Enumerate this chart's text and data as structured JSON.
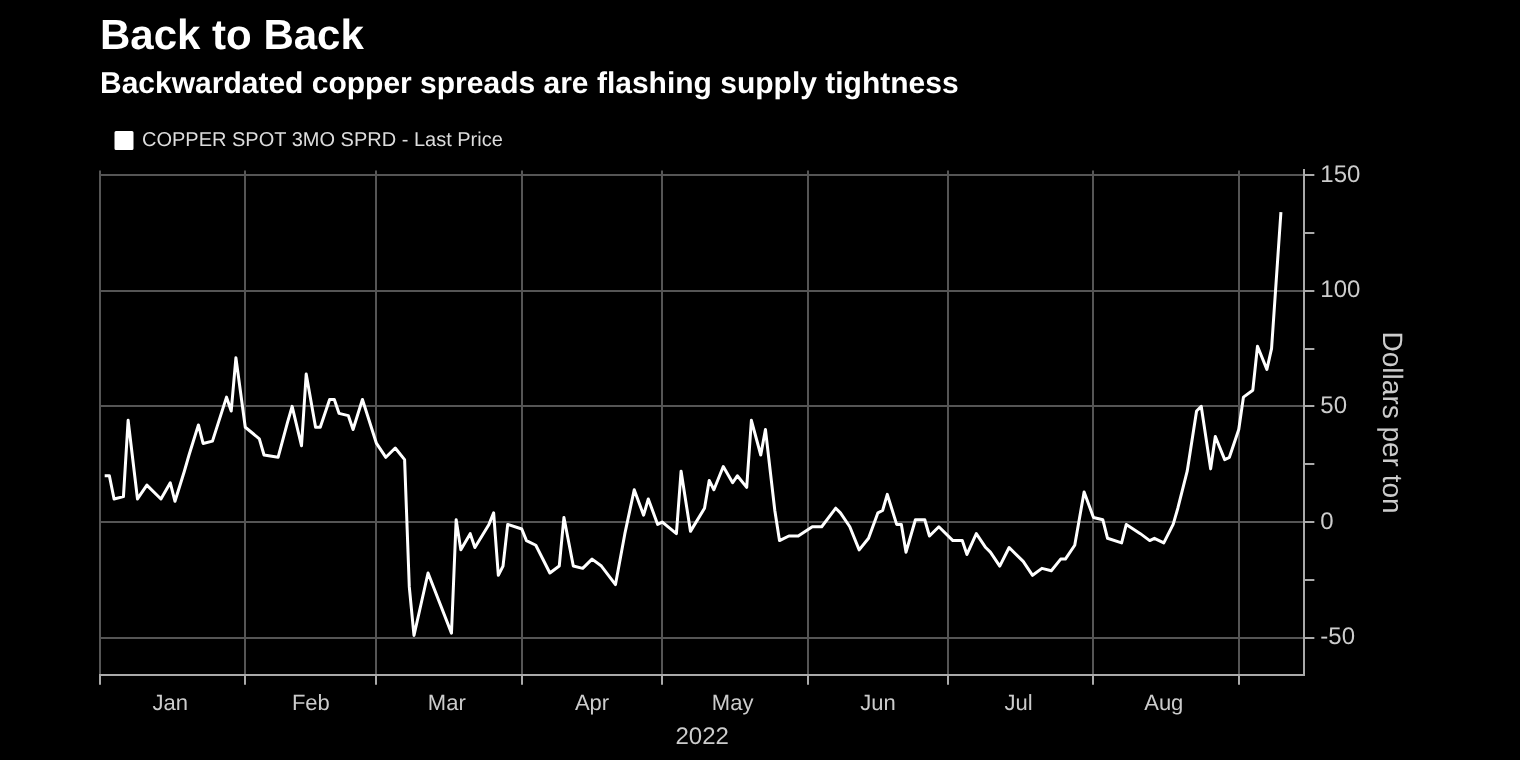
{
  "chart_data": {
    "type": "line",
    "title": "Back to Back",
    "subtitle": "Backwardated copper spreads are flashing supply tightness",
    "xlabel": "2022",
    "ylabel": "Dollars per ton",
    "legend": "top left",
    "grid": true,
    "marker": "none",
    "line_style": "solid",
    "xlim": [
      "2022-01-01",
      "2022-09-15"
    ],
    "xticks": [
      {
        "value": "2022-01-01",
        "label": null
      },
      {
        "value": "2022-01-16",
        "label": "Jan"
      },
      {
        "value": "2022-02-01",
        "label": null
      },
      {
        "value": "2022-02-15",
        "label": "Feb"
      },
      {
        "value": "2022-03-01",
        "label": null
      },
      {
        "value": "2022-03-16",
        "label": "Mar"
      },
      {
        "value": "2022-04-01",
        "label": null
      },
      {
        "value": "2022-04-16",
        "label": "Apr"
      },
      {
        "value": "2022-05-01",
        "label": null
      },
      {
        "value": "2022-05-16",
        "label": "May"
      },
      {
        "value": "2022-06-01",
        "label": null
      },
      {
        "value": "2022-06-16",
        "label": "Jun"
      },
      {
        "value": "2022-07-01",
        "label": null
      },
      {
        "value": "2022-07-16",
        "label": "Jul"
      },
      {
        "value": "2022-08-01",
        "label": null
      },
      {
        "value": "2022-08-16",
        "label": "Aug"
      },
      {
        "value": "2022-09-01",
        "label": null
      }
    ],
    "ylim": [
      -66,
      152
    ],
    "yticks": [
      -50,
      {
        "value": -25,
        "label": null
      },
      0,
      {
        "value": 25,
        "label": null
      },
      50,
      {
        "value": 75,
        "label": null
      },
      100,
      {
        "value": 125,
        "label": null
      },
      150
    ],
    "x": [
      "2022-01-02",
      "2022-01-03",
      "2022-01-04",
      "2022-01-06",
      "2022-01-07",
      "2022-01-09",
      "2022-01-11",
      "2022-01-14",
      "2022-01-16",
      "2022-01-17",
      "2022-01-19",
      "2022-01-20",
      "2022-01-22",
      "2022-01-23",
      "2022-01-25",
      "2022-01-28",
      "2022-01-29",
      "2022-01-30",
      "2022-02-01",
      "2022-02-04",
      "2022-02-05",
      "2022-02-08",
      "2022-02-10",
      "2022-02-11",
      "2022-02-13",
      "2022-02-14",
      "2022-02-16",
      "2022-02-17",
      "2022-02-19",
      "2022-02-20",
      "2022-02-21",
      "2022-02-23",
      "2022-02-24",
      "2022-02-26",
      "2022-03-01",
      "2022-03-03",
      "2022-03-05",
      "2022-03-07",
      "2022-03-08",
      "2022-03-09",
      "2022-03-12",
      "2022-03-17",
      "2022-03-18",
      "2022-03-19",
      "2022-03-21",
      "2022-03-22",
      "2022-03-25",
      "2022-03-26",
      "2022-03-27",
      "2022-03-28",
      "2022-03-29",
      "2022-04-01",
      "2022-04-02",
      "2022-04-04",
      "2022-04-07",
      "2022-04-09",
      "2022-04-10",
      "2022-04-12",
      "2022-04-14",
      "2022-04-16",
      "2022-04-18",
      "2022-04-21",
      "2022-04-23",
      "2022-04-25",
      "2022-04-27",
      "2022-04-28",
      "2022-04-30",
      "2022-05-01",
      "2022-05-04",
      "2022-05-05",
      "2022-05-07",
      "2022-05-10",
      "2022-05-11",
      "2022-05-12",
      "2022-05-14",
      "2022-05-16",
      "2022-05-17",
      "2022-05-19",
      "2022-05-20",
      "2022-05-22",
      "2022-05-23",
      "2022-05-25",
      "2022-05-26",
      "2022-05-28",
      "2022-05-30",
      "2022-06-02",
      "2022-06-04",
      "2022-06-07",
      "2022-06-08",
      "2022-06-10",
      "2022-06-12",
      "2022-06-14",
      "2022-06-16",
      "2022-06-17",
      "2022-06-18",
      "2022-06-20",
      "2022-06-21",
      "2022-06-22",
      "2022-06-24",
      "2022-06-26",
      "2022-06-27",
      "2022-06-29",
      "2022-07-02",
      "2022-07-04",
      "2022-07-05",
      "2022-07-07",
      "2022-07-09",
      "2022-07-10",
      "2022-07-12",
      "2022-07-14",
      "2022-07-17",
      "2022-07-19",
      "2022-07-21",
      "2022-07-23",
      "2022-07-25",
      "2022-07-26",
      "2022-07-28",
      "2022-07-30",
      "2022-08-01",
      "2022-08-03",
      "2022-08-04",
      "2022-08-07",
      "2022-08-08",
      "2022-08-11",
      "2022-08-13",
      "2022-08-14",
      "2022-08-16",
      "2022-08-18",
      "2022-08-19",
      "2022-08-21",
      "2022-08-23",
      "2022-08-24",
      "2022-08-26",
      "2022-08-27",
      "2022-08-29",
      "2022-08-30",
      "2022-09-01",
      "2022-09-02",
      "2022-09-04",
      "2022-09-05",
      "2022-09-07",
      "2022-09-08",
      "2022-09-10"
    ],
    "series": [
      {
        "name": "COPPER SPOT 3MO SPRD - Last Price",
        "color": "#ffffff",
        "values": [
          20,
          20,
          10,
          11,
          44,
          10,
          16,
          10,
          17,
          9,
          22,
          29,
          42,
          34,
          35,
          54,
          48,
          71,
          41,
          36,
          29,
          28,
          43,
          50,
          33,
          64,
          41,
          41,
          53,
          53,
          47,
          46,
          40,
          53,
          34,
          28,
          32,
          27,
          -28,
          -49,
          -22,
          -48,
          1,
          -12,
          -5,
          -11,
          -1,
          4,
          -23,
          -19,
          -1,
          -3,
          -8,
          -10,
          -22,
          -19,
          2,
          -19,
          -20,
          -16,
          -19,
          -27,
          -5,
          14,
          3,
          10,
          -1,
          0,
          -5,
          22,
          -4,
          6,
          18,
          14,
          24,
          17,
          20,
          15,
          44,
          29,
          40,
          5,
          -8,
          -6,
          -6,
          -2,
          -2,
          6,
          4,
          -2,
          -12,
          -7,
          4,
          5,
          12,
          -1,
          -1,
          -13,
          1,
          1,
          -6,
          -2,
          -8,
          -8,
          -14,
          -5,
          -11,
          -13,
          -19,
          -11,
          -17,
          -23,
          -20,
          -21,
          -16,
          -16,
          -10,
          13,
          2,
          1,
          -7,
          -9,
          -1,
          -5,
          -8,
          -7,
          -9,
          -1,
          6,
          22,
          48,
          50,
          23,
          37,
          27,
          28,
          40,
          54,
          57,
          76,
          66,
          75,
          134
        ]
      }
    ]
  }
}
